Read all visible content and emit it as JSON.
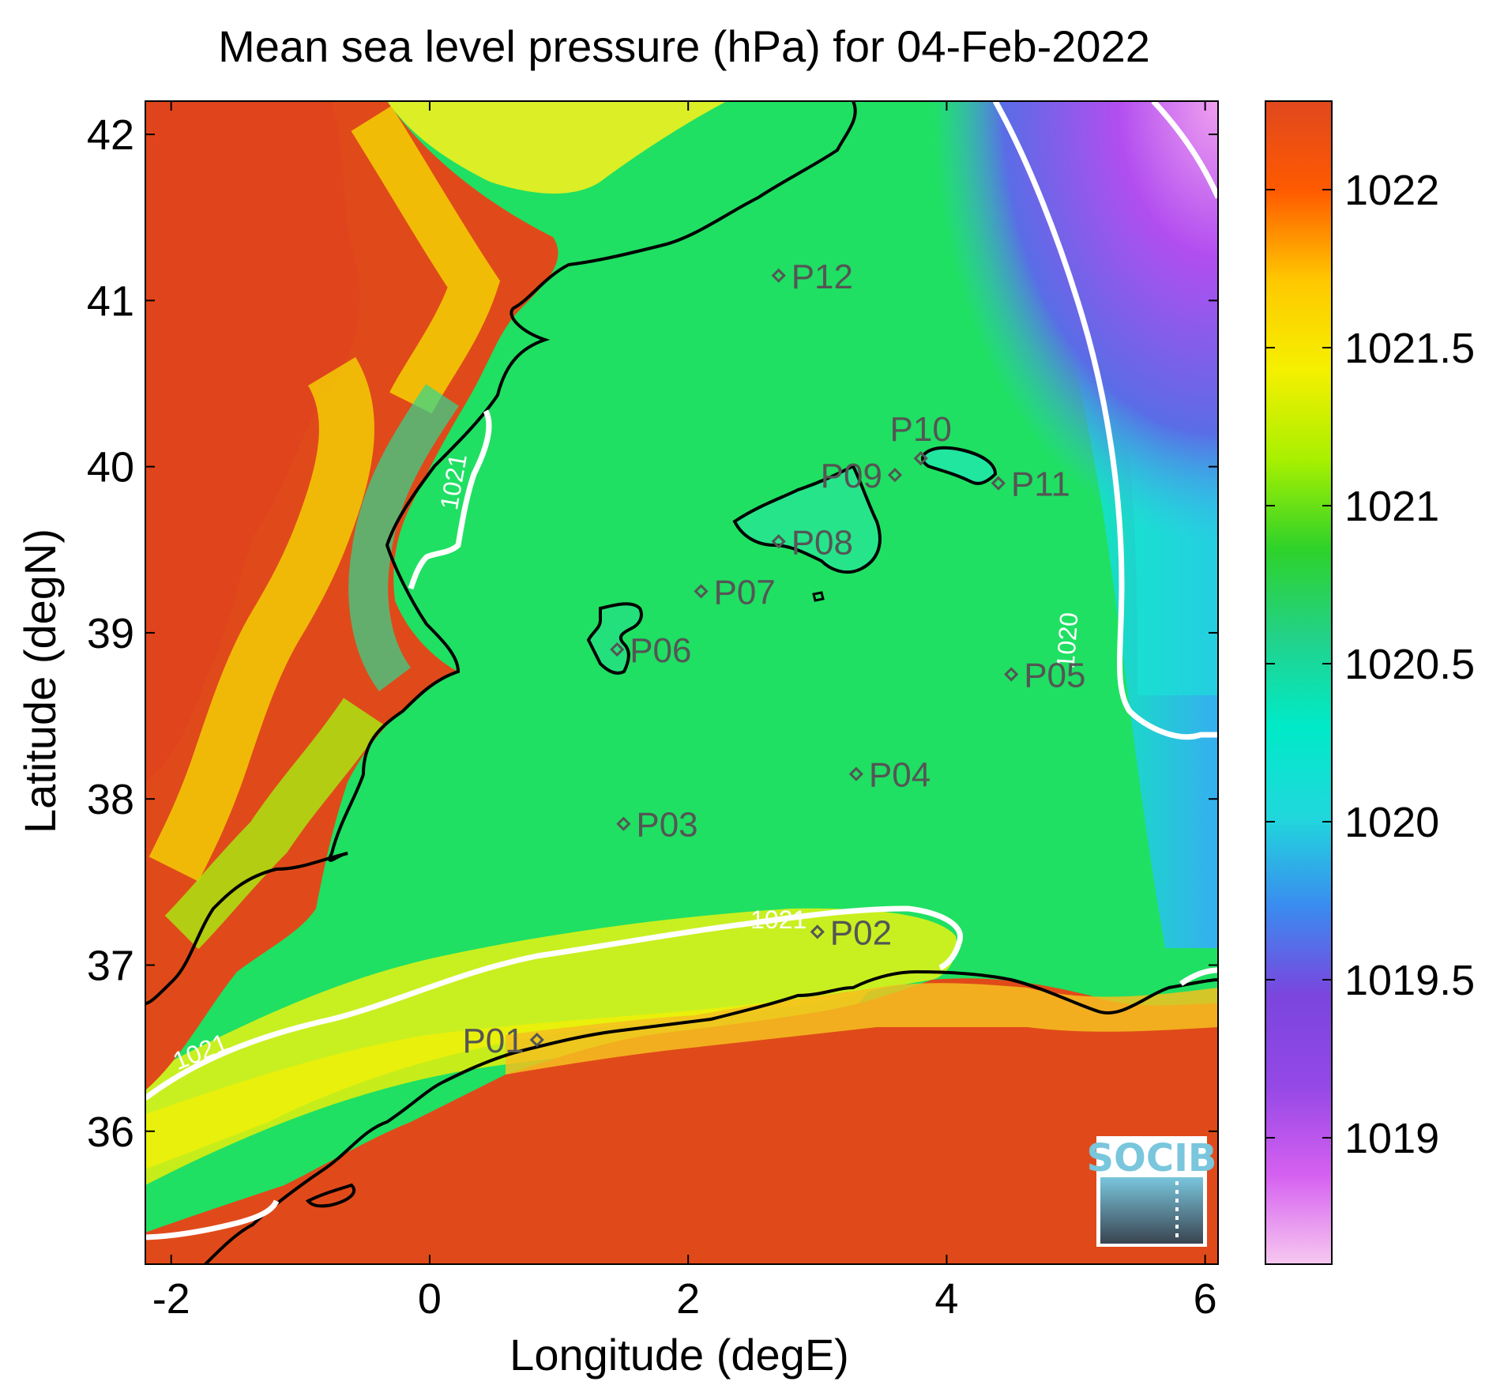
{
  "chart_data": {
    "type": "heatmap",
    "title": "Mean sea level pressure (hPa) for 04-Feb-2022",
    "xlabel": "Longitude (degE)",
    "ylabel": "Latitude (degN)",
    "xlim": [
      -2.2,
      6.1
    ],
    "ylim": [
      35.2,
      42.2
    ],
    "xticks": [
      {
        "value": -2,
        "label": "-2"
      },
      {
        "value": 0,
        "label": "0"
      },
      {
        "value": 2,
        "label": "2"
      },
      {
        "value": 4,
        "label": "4"
      },
      {
        "value": 6,
        "label": "6"
      }
    ],
    "yticks": [
      {
        "value": 36,
        "label": "36"
      },
      {
        "value": 37,
        "label": "37"
      },
      {
        "value": 38,
        "label": "38"
      },
      {
        "value": 39,
        "label": "39"
      },
      {
        "value": 40,
        "label": "40"
      },
      {
        "value": 41,
        "label": "41"
      },
      {
        "value": 42,
        "label": "42"
      }
    ],
    "colorbar": {
      "range": [
        1018.6,
        1022.28
      ],
      "colors": [
        "#f7c8f0",
        "#d560f0",
        "#9448e6",
        "#7b45de",
        "#3a8cf0",
        "#20d8dc",
        "#00eac8",
        "#22d28a",
        "#2ed22a",
        "#a8f000",
        "#f5f000",
        "#ffc800",
        "#ff5a00",
        "#e0481e"
      ],
      "ticks": [
        {
          "value": 1019,
          "label": "1019"
        },
        {
          "value": 1019.5,
          "label": "1019.5"
        },
        {
          "value": 1020,
          "label": "1020"
        },
        {
          "value": 1020.5,
          "label": "1020.5"
        },
        {
          "value": 1021,
          "label": "1021"
        },
        {
          "value": 1021.5,
          "label": "1021.5"
        },
        {
          "value": 1022,
          "label": "1022"
        }
      ]
    },
    "contour_labels": [
      {
        "text": "1021",
        "lon": 0.25,
        "lat": 39.9,
        "angle": -80
      },
      {
        "text": "1021",
        "lon": 2.7,
        "lat": 37.22,
        "angle": 0
      },
      {
        "text": "1021",
        "lon": -1.75,
        "lat": 36.43,
        "angle": -22
      },
      {
        "text": "1020",
        "lon": 5.0,
        "lat": 38.95,
        "angle": -86
      }
    ],
    "stations": [
      {
        "name": "P01",
        "lon": 0.83,
        "lat": 36.55,
        "label_side": "left"
      },
      {
        "name": "P02",
        "lon": 3.0,
        "lat": 37.2,
        "label_side": "right"
      },
      {
        "name": "P03",
        "lon": 1.5,
        "lat": 37.85,
        "label_side": "right"
      },
      {
        "name": "P04",
        "lon": 3.3,
        "lat": 38.15,
        "label_side": "right"
      },
      {
        "name": "P05",
        "lon": 4.5,
        "lat": 38.75,
        "label_side": "right"
      },
      {
        "name": "P06",
        "lon": 1.45,
        "lat": 38.9,
        "label_side": "right"
      },
      {
        "name": "P07",
        "lon": 2.1,
        "lat": 39.25,
        "label_side": "right"
      },
      {
        "name": "P08",
        "lon": 2.7,
        "lat": 39.55,
        "label_side": "right"
      },
      {
        "name": "P09",
        "lon": 3.6,
        "lat": 39.95,
        "label_side": "left"
      },
      {
        "name": "P10",
        "lon": 3.8,
        "lat": 40.05,
        "label_side": "above"
      },
      {
        "name": "P11",
        "lon": 4.4,
        "lat": 39.9,
        "label_side": "right"
      },
      {
        "name": "P12",
        "lon": 2.7,
        "lat": 41.15,
        "label_side": "right"
      }
    ]
  },
  "logo": {
    "text": "SOCIB"
  }
}
